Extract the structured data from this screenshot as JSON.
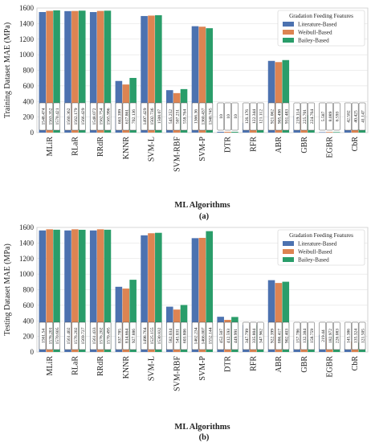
{
  "chart_data": [
    {
      "type": "bar",
      "panel_label": "(a)",
      "categories": [
        "MLiR",
        "RLaR",
        "RRdR",
        "KNNR",
        "SVM-L",
        "SVM-RBF",
        "SVM-P",
        "DTR",
        "RFR",
        "ABR",
        "GBR",
        "EGBR",
        "CbR"
      ],
      "xlabel": "ML Algorithms",
      "ylabel": "Training Dataset MAE (MPa)",
      "ylim": [
        0,
        1600
      ],
      "yticks": [
        0,
        200,
        400,
        600,
        800,
        1000,
        1200,
        1400,
        1600
      ],
      "grid": true,
      "legend": {
        "title": "Gradation Feeding Features",
        "placement": "top-right"
      },
      "series": [
        {
          "name": "Literature-Based",
          "color": "#4c72b0",
          "values": [
            1548.474,
            1560.362,
            1548.072,
            663.399,
            1497.429,
            545.252,
            1366.36,
            10,
            126.176,
            921.062,
            219.114,
            5.587,
            42.582
          ],
          "labels": [
            "1548.474",
            "1560.362",
            "1548.072",
            "663.399",
            "1497.429",
            "545.252",
            "1366.36",
            "10",
            "126.176",
            "921.062",
            "219.114",
            "5.587",
            "42.582"
          ]
        },
        {
          "name": "Weibull-Based",
          "color": "#dd8452",
          "values": [
            1563.352,
            1562.179,
            1562.754,
            617.861,
            1502.736,
            507.251,
            1360.437,
            10,
            122.344,
            905.498,
            225.701,
            8.089,
            40.425
          ],
          "labels": [
            "1563.352",
            "1562.179",
            "1562.754",
            "617.861",
            "1502.736",
            "507.251",
            "1360.437",
            "10",
            "122.344",
            "905.498",
            "225.701",
            "8.089",
            "40.425"
          ]
        },
        {
          "name": "Bailey-Based",
          "color": "#2a9d6a",
          "values": [
            1570.421,
            1566.429,
            1565.996,
            702.136,
            1508.07,
            558.764,
            1340.745,
            10,
            121.112,
            931.483,
            224.764,
            6.593,
            41.147
          ],
          "labels": [
            "1570.421",
            "1566.429",
            "1565.996",
            "702.136",
            "1508.07",
            "558.764",
            "1340.745",
            "10",
            "121.112",
            "931.483",
            "224.764",
            "6.593",
            "41.147"
          ]
        }
      ]
    },
    {
      "type": "bar",
      "panel_label": "(b)",
      "categories": [
        "MLiR",
        "RLaR",
        "RRdR",
        "KNNR",
        "SVM-L",
        "SVM-RBF",
        "SVM-P",
        "DTR",
        "RFR",
        "ABR",
        "GBR",
        "EGBR",
        "CbR"
      ],
      "xlabel": "ML Algorithms",
      "ylabel": "Testing Dataset MAE (MPa)",
      "ylim": [
        0,
        1600
      ],
      "yticks": [
        0,
        200,
        400,
        600,
        800,
        1000,
        1200,
        1400,
        1600
      ],
      "grid": true,
      "legend": {
        "title": "Gradation Feeding Features",
        "placement": "top-right"
      },
      "series": [
        {
          "name": "Literature-Based",
          "color": "#4c72b0",
          "values": [
            1561.54,
            1561.402,
            1561.433,
            837.785,
            1498.764,
            582.034,
            1462.234,
            452.507,
            347.799,
            922.399,
            157.786,
            219.44,
            145.386
          ],
          "labels": [
            "1561.54",
            "1561.402",
            "1561.433",
            "837.785",
            "1498.764",
            "582.034",
            "1462.234",
            "452.507",
            "347.799",
            "922.399",
            "157.786",
            "219.44",
            "145.386"
          ]
        },
        {
          "name": "Weibull-Based",
          "color": "#dd8452",
          "values": [
            1576.201,
            1576.202,
            1576.202,
            814.664,
            1525.155,
            545.031,
            1466.007,
            412.593,
            335.804,
            886.417,
            132.384,
            182.972,
            135.324
          ],
          "labels": [
            "1576.201",
            "1576.202",
            "1576.202",
            "814.664",
            "1525.155",
            "545.031",
            "1466.007",
            "412.593",
            "335.804",
            "886.417",
            "132.384",
            "182.972",
            "135.324"
          ]
        },
        {
          "name": "Bailey-Based",
          "color": "#2a9d6a",
          "values": [
            1570.605,
            1569.727,
            1570.495,
            927.886,
            1530.832,
            603.806,
            1552.144,
            449.991,
            347.962,
            902.403,
            158.759,
            226.083,
            121.505
          ],
          "labels": [
            "1570.605",
            "1569.727",
            "1570.495",
            "927.886",
            "1530.832",
            "603.806",
            "1552.144",
            "449.991",
            "347.962",
            "902.403",
            "158.759",
            "226.083",
            "121.505"
          ]
        }
      ]
    }
  ]
}
